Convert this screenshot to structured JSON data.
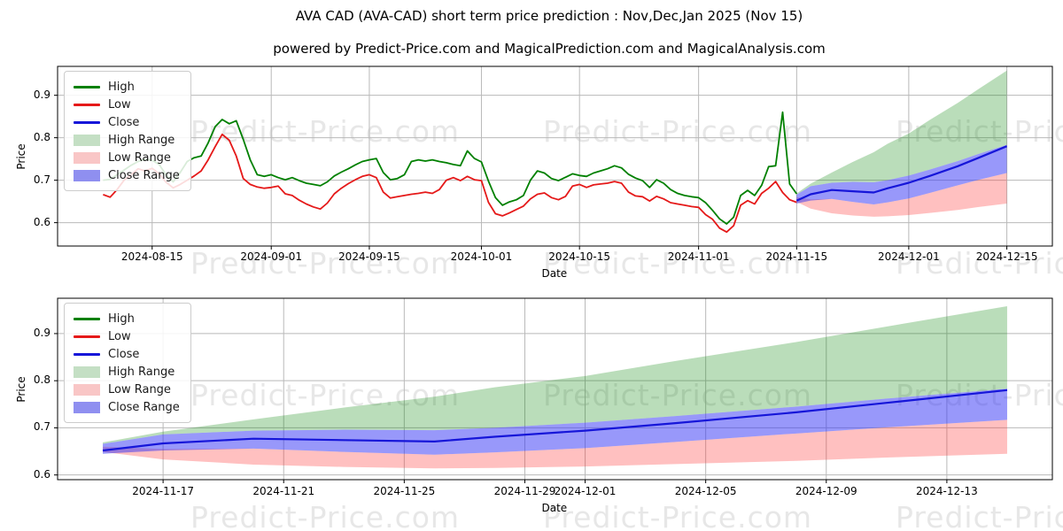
{
  "title": "AVA CAD (AVA-CAD) short term price prediction : Nov,Dec,Jan 2025 (Nov 15)",
  "subtitle": "powered by Predict-Price.com and MagicalPrediction.com and MagicalAnalysis.com",
  "watermark": {
    "text": "Predict-Price.com"
  },
  "colors": {
    "high_line": "#008000",
    "low_line": "#e51919",
    "close_line": "#1616d9",
    "high_fill": "rgba(0,128,0,0.27)",
    "low_fill": "rgba(255,45,45,0.30)",
    "close_fill": "rgba(50,50,245,0.50)",
    "grid": "#b9b9b9",
    "axis": "#000000",
    "watermark_color": "rgba(70,70,70,0.13)",
    "legend_high_patch": "#c4dfc4",
    "legend_low_patch": "#f9c6c6",
    "legend_close_patch": "#8f8ff0"
  },
  "legend": [
    {
      "label": "High",
      "swatch": "line",
      "color": "#008000"
    },
    {
      "label": "Low",
      "swatch": "line",
      "color": "#e51919"
    },
    {
      "label": "Close",
      "swatch": "line",
      "color": "#1616d9"
    },
    {
      "label": "High Range",
      "swatch": "patch",
      "color": "#c4dfc4"
    },
    {
      "label": "Low Range",
      "swatch": "patch",
      "color": "#f9c6c6"
    },
    {
      "label": "Close Range",
      "swatch": "patch",
      "color": "#8f8ff0"
    }
  ],
  "chart_data": [
    {
      "type": "line",
      "title": "",
      "xlabel": "Date",
      "ylabel": "Price",
      "xlim": [
        "2024-08-01T12:00",
        "2024-12-21T12:00"
      ],
      "ylim": [
        0.545,
        0.968
      ],
      "yticks": [
        0.6,
        0.7,
        0.8,
        0.9
      ],
      "xticks": [
        "2024-08-15",
        "2024-09-01",
        "2024-09-15",
        "2024-10-01",
        "2024-10-15",
        "2024-11-01",
        "2024-11-15",
        "2024-12-01",
        "2024-12-15"
      ],
      "grid": true,
      "legend_position": "upper left",
      "series": {
        "history": {
          "start_date": "2024-08-08",
          "freq": "daily",
          "high": [
            0.7,
            0.702,
            0.713,
            0.724,
            0.735,
            0.744,
            0.75,
            0.747,
            0.737,
            0.712,
            0.696,
            0.718,
            0.744,
            0.753,
            0.757,
            0.788,
            0.826,
            0.843,
            0.833,
            0.84,
            0.796,
            0.748,
            0.713,
            0.709,
            0.713,
            0.706,
            0.701,
            0.706,
            0.699,
            0.693,
            0.69,
            0.687,
            0.696,
            0.71,
            0.719,
            0.727,
            0.736,
            0.744,
            0.748,
            0.751,
            0.718,
            0.701,
            0.704,
            0.713,
            0.744,
            0.748,
            0.745,
            0.748,
            0.744,
            0.741,
            0.737,
            0.734,
            0.769,
            0.751,
            0.743,
            0.698,
            0.659,
            0.641,
            0.649,
            0.654,
            0.664,
            0.7,
            0.722,
            0.717,
            0.704,
            0.699,
            0.707,
            0.715,
            0.711,
            0.709,
            0.717,
            0.722,
            0.727,
            0.734,
            0.729,
            0.714,
            0.705,
            0.699,
            0.683,
            0.701,
            0.693,
            0.678,
            0.669,
            0.664,
            0.661,
            0.659,
            0.647,
            0.629,
            0.609,
            0.597,
            0.613,
            0.664,
            0.676,
            0.664,
            0.688,
            0.732,
            0.734,
            0.86,
            0.691,
            0.668
          ],
          "low": [
            0.666,
            0.66,
            0.678,
            0.7,
            0.713,
            0.727,
            0.722,
            0.728,
            0.715,
            0.695,
            0.682,
            0.69,
            0.7,
            0.71,
            0.722,
            0.748,
            0.779,
            0.808,
            0.794,
            0.757,
            0.704,
            0.69,
            0.684,
            0.681,
            0.683,
            0.686,
            0.668,
            0.664,
            0.653,
            0.644,
            0.637,
            0.632,
            0.646,
            0.668,
            0.681,
            0.692,
            0.701,
            0.709,
            0.713,
            0.706,
            0.672,
            0.658,
            0.661,
            0.664,
            0.667,
            0.669,
            0.672,
            0.669,
            0.678,
            0.7,
            0.706,
            0.699,
            0.709,
            0.701,
            0.699,
            0.648,
            0.621,
            0.616,
            0.623,
            0.631,
            0.639,
            0.656,
            0.667,
            0.67,
            0.659,
            0.654,
            0.662,
            0.686,
            0.69,
            0.683,
            0.689,
            0.691,
            0.693,
            0.697,
            0.693,
            0.672,
            0.663,
            0.661,
            0.651,
            0.662,
            0.656,
            0.647,
            0.644,
            0.641,
            0.638,
            0.636,
            0.619,
            0.608,
            0.587,
            0.578,
            0.593,
            0.641,
            0.652,
            0.644,
            0.669,
            0.681,
            0.697,
            0.671,
            0.654,
            0.648
          ]
        },
        "prediction": {
          "dates": [
            "2024-11-15",
            "2024-11-17",
            "2024-11-20",
            "2024-11-23",
            "2024-11-26",
            "2024-11-28",
            "2024-12-01",
            "2024-12-04",
            "2024-12-08",
            "2024-12-11",
            "2024-12-15"
          ],
          "close": [
            0.652,
            0.667,
            0.677,
            0.674,
            0.671,
            0.681,
            0.694,
            0.71,
            0.733,
            0.753,
            0.78
          ],
          "close_top": [
            0.666,
            0.686,
            0.694,
            0.696,
            0.695,
            0.7,
            0.711,
            0.725,
            0.745,
            0.762,
            0.783
          ],
          "close_bot": [
            0.645,
            0.652,
            0.656,
            0.649,
            0.643,
            0.648,
            0.657,
            0.67,
            0.688,
            0.701,
            0.717
          ],
          "high_top": [
            0.669,
            0.692,
            0.718,
            0.743,
            0.766,
            0.786,
            0.81,
            0.842,
            0.882,
            0.915,
            0.958
          ],
          "low_top": [
            0.66,
            0.655,
            0.656,
            0.649,
            0.643,
            0.648,
            0.657,
            0.67,
            0.688,
            0.701,
            0.717
          ],
          "low_bot": [
            0.649,
            0.633,
            0.622,
            0.617,
            0.614,
            0.615,
            0.618,
            0.623,
            0.63,
            0.637,
            0.645
          ]
        }
      }
    },
    {
      "type": "line",
      "title": "",
      "xlabel": "Date",
      "ylabel": "Price",
      "xlim": [
        "2024-11-13T12:00",
        "2024-12-16T12:00"
      ],
      "ylim": [
        0.59,
        0.975
      ],
      "yticks": [
        0.6,
        0.7,
        0.8,
        0.9
      ],
      "xticks": [
        "2024-11-17",
        "2024-11-21",
        "2024-11-25",
        "2024-11-29",
        "2024-12-01",
        "2024-12-05",
        "2024-12-09",
        "2024-12-13"
      ],
      "grid": true,
      "legend_position": "upper left",
      "series": {
        "prediction": "same-as-chart-1"
      }
    }
  ]
}
